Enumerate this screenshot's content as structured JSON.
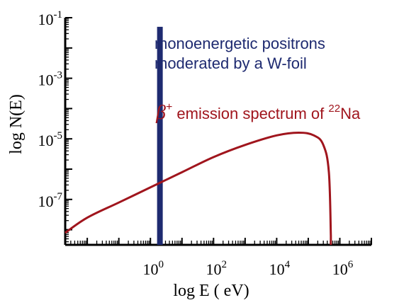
{
  "chart_data": {
    "type": "line",
    "xlabel": "log E ( eV)",
    "ylabel": "log  N(E)",
    "x_scale": "log",
    "y_scale": "log",
    "xlim": [
      0.002,
      10000000
    ],
    "ylim": [
      3.16e-09,
      0.1
    ],
    "x_ticks": [
      {
        "base": "10",
        "exp": "0",
        "value": 1
      },
      {
        "base": "10",
        "exp": "2",
        "value": 100
      },
      {
        "base": "10",
        "exp": "4",
        "value": 10000
      },
      {
        "base": "10",
        "exp": "6",
        "value": 1000000
      }
    ],
    "y_ticks": [
      {
        "base": "10",
        "exp": "-1",
        "value": 0.1
      },
      {
        "base": "10",
        "exp": "-3",
        "value": 0.001
      },
      {
        "base": "10",
        "exp": "-5",
        "value": 1e-05
      },
      {
        "base": "10",
        "exp": "-7",
        "value": 1e-07
      }
    ],
    "grid": false,
    "series": [
      {
        "color": "#a0151d",
        "points": [
          {
            "x": 0.002,
            "y": 7.9e-09
          },
          {
            "x": 0.01,
            "y": 2.5e-08
          },
          {
            "x": 0.1,
            "y": 7.9e-08
          },
          {
            "x": 1,
            "y": 2.5e-07
          },
          {
            "x": 10,
            "y": 7.9e-07
          },
          {
            "x": 100,
            "y": 2.5e-06
          },
          {
            "x": 1000,
            "y": 6.3e-06
          },
          {
            "x": 10000,
            "y": 1.3e-05
          },
          {
            "x": 50000,
            "y": 1.6e-05
          },
          {
            "x": 150000,
            "y": 1.3e-05
          },
          {
            "x": 300000,
            "y": 6.3e-06
          },
          {
            "x": 450000,
            "y": 7.9e-07
          },
          {
            "x": 520000,
            "y": 6.3e-09
          }
        ]
      }
    ],
    "bars": [
      {
        "x": 2,
        "y": 0.05,
        "color": "#1e2a70"
      }
    ],
    "annotations": {
      "positron_line1": "monoenergetic positrons",
      "positron_line2": "moderated by a W-foil",
      "beta_symbol": "β",
      "beta_sup": "+",
      "beta_text": " emission spectrum of ",
      "isotope_mass": "22",
      "isotope_symbol": "Na"
    },
    "colors": {
      "axis": "#000000",
      "spectrum": "#a0151d",
      "positron_bar": "#1e2a70"
    }
  }
}
